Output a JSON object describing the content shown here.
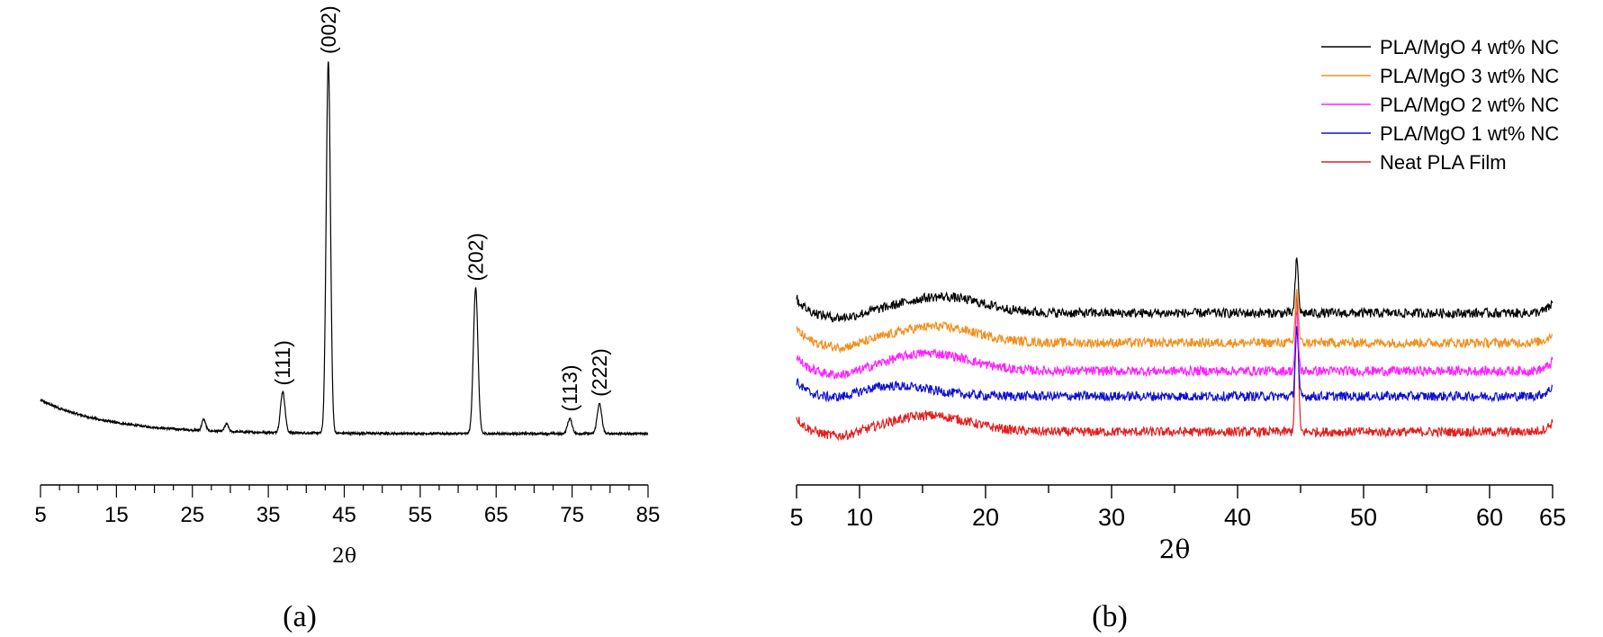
{
  "panels": {
    "a": "(a)",
    "b": "(b)"
  },
  "chart_data": [
    {
      "type": "line",
      "panel": "(a)",
      "xlabel": "2θ",
      "ylabel": "",
      "xlim": [
        5,
        85
      ],
      "xticks": [
        5,
        15,
        25,
        35,
        45,
        55,
        65,
        75,
        85
      ],
      "grid": false,
      "baseline": 0.0,
      "background": {
        "start": 0.09,
        "decay": 9
      },
      "peaks": [
        {
          "x": 26.5,
          "height": 0.03,
          "width": 0.25,
          "label": ""
        },
        {
          "x": 29.5,
          "height": 0.02,
          "width": 0.25,
          "label": ""
        },
        {
          "x": 36.9,
          "height": 0.11,
          "width": 0.3,
          "label": "(111)"
        },
        {
          "x": 42.9,
          "height": 1.0,
          "width": 0.28,
          "label": "(002)"
        },
        {
          "x": 62.3,
          "height": 0.39,
          "width": 0.3,
          "label": "(202)"
        },
        {
          "x": 74.7,
          "height": 0.04,
          "width": 0.3,
          "label": "(113)"
        },
        {
          "x": 78.6,
          "height": 0.08,
          "width": 0.3,
          "label": "(222)"
        }
      ],
      "color": "#000000"
    },
    {
      "type": "line",
      "panel": "(b)",
      "xlabel": "2θ",
      "ylabel": "",
      "xlim": [
        5,
        65
      ],
      "xticks": [
        5,
        10,
        20,
        30,
        40,
        50,
        60,
        65
      ],
      "grid": false,
      "legend_position": "top-right",
      "series": [
        {
          "name": "PLA/MgO 4 wt% NC",
          "color": "#000000",
          "offset": 4.0,
          "hump_center": 16.5,
          "hump_height": 0.55,
          "peak_x": 44.7,
          "peak_height": 1.8
        },
        {
          "name": "PLA/MgO 3 wt% NC",
          "color": "#f0901e",
          "offset": 3.0,
          "hump_center": 16.0,
          "hump_height": 0.55,
          "peak_x": 44.7,
          "peak_height": 1.8
        },
        {
          "name": "PLA/MgO 2 wt% NC",
          "color": "#ff20ff",
          "offset": 2.05,
          "hump_center": 15.5,
          "hump_height": 0.6,
          "peak_x": 44.7,
          "peak_height": 1.9
        },
        {
          "name": "PLA/MgO 1 wt% NC",
          "color": "#1010d0",
          "offset": 1.2,
          "hump_center": 12.5,
          "hump_height": 0.35,
          "peak_x": 44.7,
          "peak_height": 2.3
        },
        {
          "name": "Neat PLA Film",
          "color": "#e02020",
          "offset": 0.0,
          "hump_center": 15.5,
          "hump_height": 0.55,
          "peak_x": 44.7,
          "peak_height": 4.7
        }
      ]
    }
  ]
}
